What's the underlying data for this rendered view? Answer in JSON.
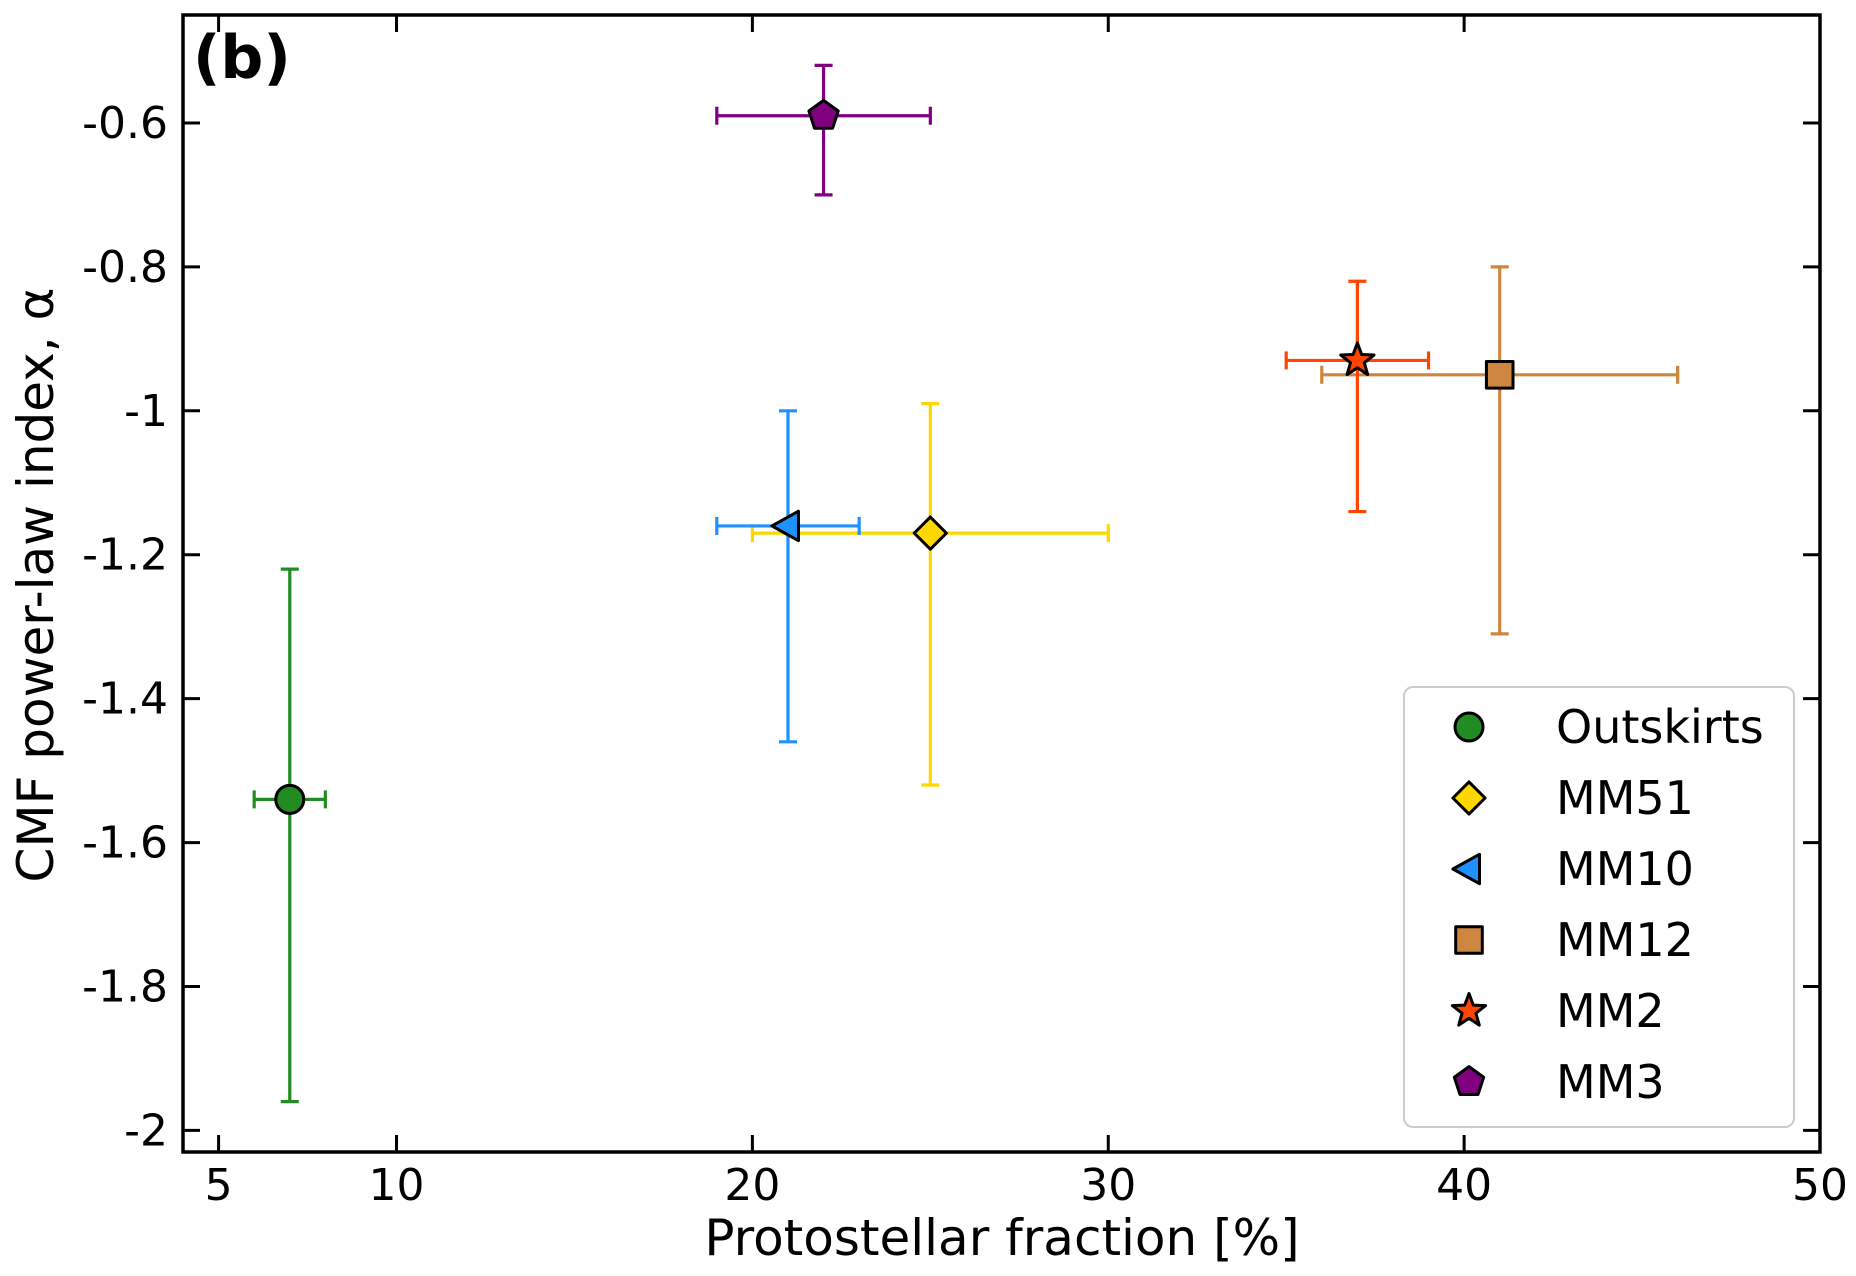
{
  "chart_data": {
    "type": "scatter",
    "panel_label": "(b)",
    "xlabel": "Protostellar fraction [%]",
    "ylabel": "CMF power-law index, α",
    "xlim": [
      4.0,
      50.0
    ],
    "ylim": [
      -2.03,
      -0.45
    ],
    "x_ticks": [
      5,
      10,
      20,
      30,
      40,
      50
    ],
    "x_tick_labels": [
      "5",
      "10",
      "20",
      "30",
      "40",
      "50"
    ],
    "y_ticks": [
      -0.6,
      -0.8,
      -1.0,
      -1.2,
      -1.4,
      -1.6,
      -1.8,
      -2.0
    ],
    "y_tick_labels": [
      "-0.6",
      "-0.8",
      "-1",
      "-1.2",
      "-1.4",
      "-1.6",
      "-1.8",
      "-2"
    ],
    "grid": false,
    "legend_position": "lower-right",
    "series": [
      {
        "name": "Outskirts",
        "marker": "circle",
        "color": "#228B22",
        "x": 7,
        "y": -1.54,
        "xerr": [
          1,
          1
        ],
        "yerr": [
          0.42,
          0.32
        ]
      },
      {
        "name": "MM51",
        "marker": "diamond",
        "color": "#FFD700",
        "x": 25,
        "y": -1.17,
        "xerr": [
          5,
          5
        ],
        "yerr": [
          0.35,
          0.18
        ]
      },
      {
        "name": "MM10",
        "marker": "triangle-left",
        "color": "#1E90FF",
        "x": 21,
        "y": -1.16,
        "xerr": [
          2,
          2
        ],
        "yerr": [
          0.3,
          0.16
        ]
      },
      {
        "name": "MM12",
        "marker": "square",
        "color": "#CD853F",
        "x": 41,
        "y": -0.95,
        "xerr": [
          5,
          5
        ],
        "yerr": [
          0.36,
          0.15
        ]
      },
      {
        "name": "MM2",
        "marker": "star",
        "color": "#FF4500",
        "x": 37,
        "y": -0.93,
        "xerr": [
          2,
          2
        ],
        "yerr": [
          0.21,
          0.11
        ]
      },
      {
        "name": "MM3",
        "marker": "pentagon",
        "color": "#800080",
        "x": 22,
        "y": -0.59,
        "xerr": [
          3,
          3
        ],
        "yerr": [
          0.11,
          0.07
        ]
      }
    ]
  }
}
